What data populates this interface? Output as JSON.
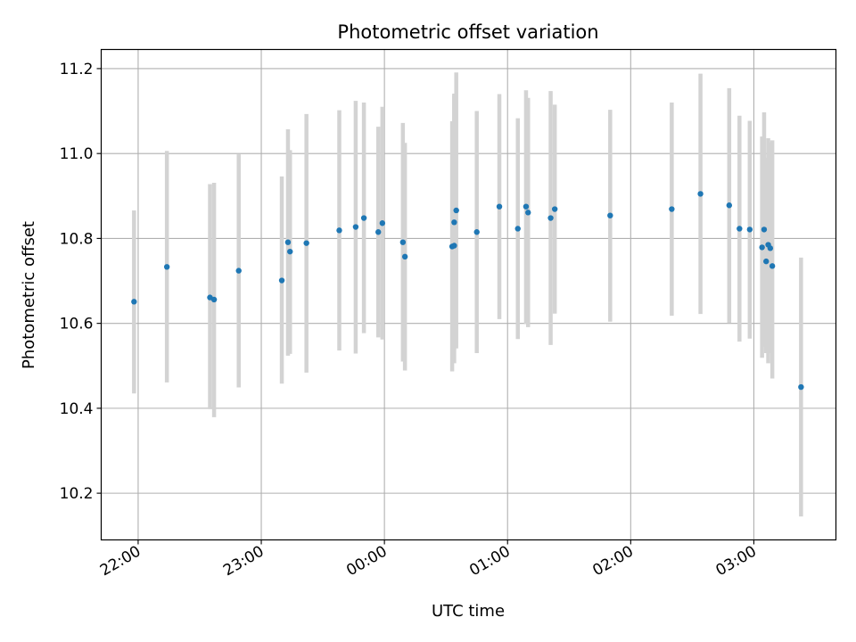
{
  "chart_data": {
    "type": "scatter",
    "title": "Photometric offset variation",
    "xlabel": "UTC time",
    "ylabel": "Photometric offset",
    "x_axis": {
      "kind": "time",
      "start": "21:42",
      "end": "03:40",
      "ticks": [
        "22:00",
        "23:00",
        "00:00",
        "01:00",
        "02:00",
        "03:00"
      ]
    },
    "ylim": [
      10.09,
      11.245
    ],
    "y_ticks": [
      "10.2",
      "10.4",
      "10.6",
      "10.8",
      "11.0",
      "11.2"
    ],
    "grid": true,
    "colors": {
      "points": "#1f77b4",
      "errorbars": "#d3d3d3",
      "grid": "#b0b0b0"
    },
    "points": [
      {
        "x": "21:58",
        "y": 10.651,
        "ylow": 10.435,
        "yhigh": 10.866
      },
      {
        "x": "22:14",
        "y": 10.733,
        "ylow": 10.461,
        "yhigh": 11.006
      },
      {
        "x": "22:35",
        "y": 10.661,
        "ylow": 10.398,
        "yhigh": 10.928
      },
      {
        "x": "22:37",
        "y": 10.656,
        "ylow": 10.379,
        "yhigh": 10.931
      },
      {
        "x": "22:49",
        "y": 10.724,
        "ylow": 10.449,
        "yhigh": 10.998
      },
      {
        "x": "23:10",
        "y": 10.701,
        "ylow": 10.458,
        "yhigh": 10.946
      },
      {
        "x": "23:13",
        "y": 10.791,
        "ylow": 10.524,
        "yhigh": 11.057
      },
      {
        "x": "23:14",
        "y": 10.769,
        "ylow": 10.528,
        "yhigh": 11.008
      },
      {
        "x": "23:22",
        "y": 10.789,
        "ylow": 10.484,
        "yhigh": 11.093
      },
      {
        "x": "23:38",
        "y": 10.819,
        "ylow": 10.536,
        "yhigh": 11.102
      },
      {
        "x": "23:46",
        "y": 10.827,
        "ylow": 10.529,
        "yhigh": 11.124
      },
      {
        "x": "23:50",
        "y": 10.848,
        "ylow": 10.577,
        "yhigh": 11.12
      },
      {
        "x": "23:57",
        "y": 10.815,
        "ylow": 10.567,
        "yhigh": 11.063
      },
      {
        "x": "23:59",
        "y": 10.836,
        "ylow": 10.562,
        "yhigh": 11.11
      },
      {
        "x": "00:09",
        "y": 10.791,
        "ylow": 10.51,
        "yhigh": 11.072
      },
      {
        "x": "00:10",
        "y": 10.757,
        "ylow": 10.489,
        "yhigh": 11.025
      },
      {
        "x": "00:33",
        "y": 10.781,
        "ylow": 10.487,
        "yhigh": 11.076
      },
      {
        "x": "00:34",
        "y": 10.783,
        "ylow": 10.506,
        "yhigh": 11.141
      },
      {
        "x": "00:34",
        "y": 10.838,
        "ylow": 10.538,
        "yhigh": 11.138
      },
      {
        "x": "00:35",
        "y": 10.866,
        "ylow": 10.541,
        "yhigh": 11.191
      },
      {
        "x": "00:45",
        "y": 10.815,
        "ylow": 10.53,
        "yhigh": 11.1
      },
      {
        "x": "00:56",
        "y": 10.875,
        "ylow": 10.61,
        "yhigh": 11.14
      },
      {
        "x": "01:05",
        "y": 10.823,
        "ylow": 10.563,
        "yhigh": 11.083
      },
      {
        "x": "01:09",
        "y": 10.875,
        "ylow": 10.599,
        "yhigh": 11.149
      },
      {
        "x": "01:10",
        "y": 10.861,
        "ylow": 10.591,
        "yhigh": 11.131
      },
      {
        "x": "01:21",
        "y": 10.848,
        "ylow": 10.549,
        "yhigh": 11.147
      },
      {
        "x": "01:23",
        "y": 10.869,
        "ylow": 10.623,
        "yhigh": 11.115
      },
      {
        "x": "01:50",
        "y": 10.854,
        "ylow": 10.604,
        "yhigh": 11.103
      },
      {
        "x": "02:20",
        "y": 10.869,
        "ylow": 10.618,
        "yhigh": 11.12
      },
      {
        "x": "02:34",
        "y": 10.905,
        "ylow": 10.622,
        "yhigh": 11.188
      },
      {
        "x": "02:48",
        "y": 10.878,
        "ylow": 10.601,
        "yhigh": 11.154
      },
      {
        "x": "02:53",
        "y": 10.823,
        "ylow": 10.557,
        "yhigh": 11.089
      },
      {
        "x": "02:58",
        "y": 10.821,
        "ylow": 10.564,
        "yhigh": 11.077
      },
      {
        "x": "03:04",
        "y": 10.779,
        "ylow": 10.519,
        "yhigh": 11.04
      },
      {
        "x": "03:05",
        "y": 10.821,
        "ylow": 10.545,
        "yhigh": 11.097
      },
      {
        "x": "03:06",
        "y": 10.746,
        "ylow": 10.53,
        "yhigh": 10.99
      },
      {
        "x": "03:07",
        "y": 10.785,
        "ylow": 10.506,
        "yhigh": 11.036
      },
      {
        "x": "03:08",
        "y": 10.777,
        "ylow": 10.53,
        "yhigh": 11.026
      },
      {
        "x": "03:09",
        "y": 10.735,
        "ylow": 10.47,
        "yhigh": 11.031
      },
      {
        "x": "03:23",
        "y": 10.45,
        "ylow": 10.145,
        "yhigh": 10.755
      }
    ]
  }
}
